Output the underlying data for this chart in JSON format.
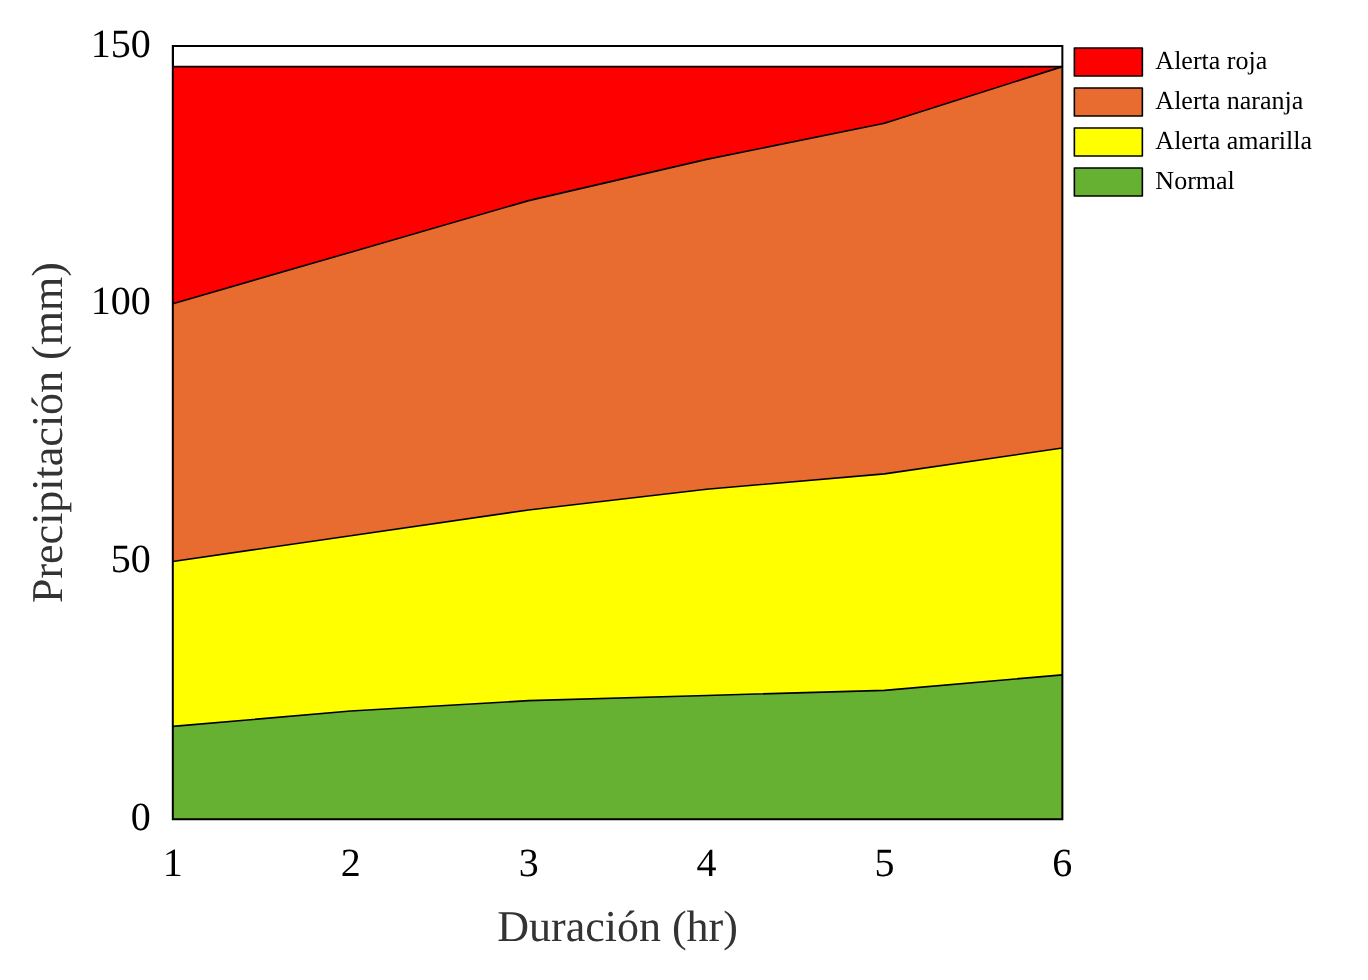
{
  "chart_data": {
    "type": "area",
    "xlabel": "Duración (hr)",
    "ylabel": "Precipitación (mm)",
    "x": [
      1,
      2,
      3,
      4,
      5,
      6
    ],
    "stacked": true,
    "xlim": [
      1,
      6
    ],
    "xticks": [
      1,
      2,
      3,
      4,
      5,
      6
    ],
    "ylim": [
      0,
      150
    ],
    "yticks": [
      0,
      50,
      100,
      150
    ],
    "grid": false,
    "legend": "top right",
    "series": [
      {
        "name": "Normal",
        "color": "#66b032",
        "values": [
          18,
          21,
          23,
          24,
          25,
          28
        ]
      },
      {
        "name": "Alerta amarilla",
        "color": "#ffff00",
        "values": [
          32,
          34,
          37,
          40,
          42,
          44
        ]
      },
      {
        "name": "Alerta naranja",
        "color": "#e86b2f",
        "values": [
          50,
          55,
          60,
          64,
          68,
          74
        ]
      },
      {
        "name": "Alerta roja",
        "color": "#ff0000",
        "values": [
          46,
          36,
          26,
          18,
          11,
          0
        ]
      }
    ]
  }
}
